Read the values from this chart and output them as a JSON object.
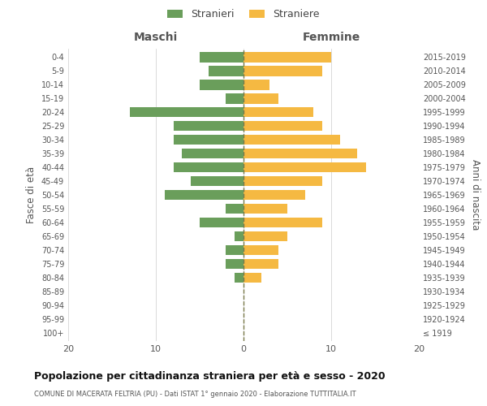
{
  "age_groups": [
    "100+",
    "95-99",
    "90-94",
    "85-89",
    "80-84",
    "75-79",
    "70-74",
    "65-69",
    "60-64",
    "55-59",
    "50-54",
    "45-49",
    "40-44",
    "35-39",
    "30-34",
    "25-29",
    "20-24",
    "15-19",
    "10-14",
    "5-9",
    "0-4"
  ],
  "birth_years": [
    "≤ 1919",
    "1920-1924",
    "1925-1929",
    "1930-1934",
    "1935-1939",
    "1940-1944",
    "1945-1949",
    "1950-1954",
    "1955-1959",
    "1960-1964",
    "1965-1969",
    "1970-1974",
    "1975-1979",
    "1980-1984",
    "1985-1989",
    "1990-1994",
    "1995-1999",
    "2000-2004",
    "2005-2009",
    "2010-2014",
    "2015-2019"
  ],
  "maschi": [
    0,
    0,
    0,
    0,
    1,
    2,
    2,
    1,
    5,
    2,
    9,
    6,
    8,
    7,
    8,
    8,
    13,
    2,
    5,
    4,
    5
  ],
  "femmine": [
    0,
    0,
    0,
    0,
    2,
    4,
    4,
    5,
    9,
    5,
    7,
    9,
    14,
    13,
    11,
    9,
    8,
    4,
    3,
    9,
    10
  ],
  "maschi_color": "#6a9e5b",
  "femmine_color": "#f5b942",
  "background_color": "#ffffff",
  "grid_color": "#cccccc",
  "dashed_line_color": "#7a7a4a",
  "title": "Popolazione per cittadinanza straniera per età e sesso - 2020",
  "subtitle": "COMUNE DI MACERATA FELTRIA (PU) - Dati ISTAT 1° gennaio 2020 - Elaborazione TUTTITALIA.IT",
  "xlabel_left": "Maschi",
  "xlabel_right": "Femmine",
  "ylabel_left": "Fasce di età",
  "ylabel_right": "Anni di nascita",
  "legend_stranieri": "Stranieri",
  "legend_straniere": "Straniere",
  "xlim": 20,
  "bar_height": 0.75
}
